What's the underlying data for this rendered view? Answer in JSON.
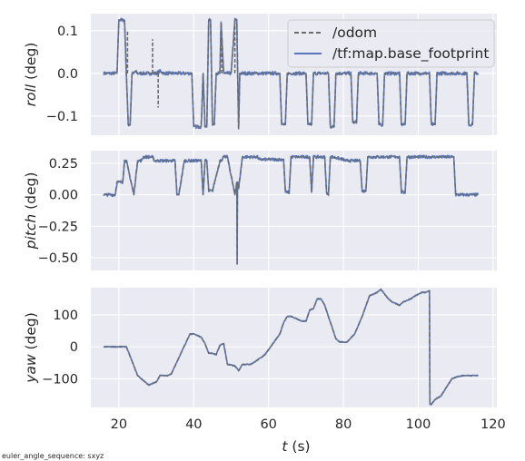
{
  "chart_data": {
    "type": "line",
    "x_label": {
      "var": "t",
      "unit": " (s)"
    },
    "x_ticks": [
      20,
      40,
      60,
      80,
      100,
      120
    ],
    "xlim": [
      12.5,
      121
    ],
    "legend": {
      "placement": "top-right of top panel",
      "entries": [
        {
          "name": "/odom",
          "style": "dashed",
          "color": "#6b6b6b"
        },
        {
          "name": "/tf:map.base_footprint",
          "style": "solid",
          "color": "#5876b8"
        }
      ]
    },
    "footnote": "euler_angle_sequence: sxyz",
    "grid": true,
    "panels": [
      {
        "id": "roll",
        "ylabel": {
          "var": "roll",
          "unit": " (deg)"
        },
        "ylim": [
          -0.145,
          0.14
        ],
        "y_ticks": [
          0.1,
          0.0,
          -0.1
        ],
        "y_tick_labels": [
          "0.1",
          "0.0",
          "−0.1"
        ],
        "series": [
          {
            "name": "/tf:map.base_footprint",
            "t": [
              16,
              19.5,
              20,
              21.5,
              22,
              22.5,
              23,
              23.5,
              24,
              24.4,
              25,
              30,
              31,
              32,
              39.5,
              40,
              42,
              42.5,
              43,
              43.5,
              44,
              44.5,
              45,
              45.5,
              46,
              47,
              47.3,
              48,
              50,
              51,
              51.5,
              52,
              52.3,
              53,
              63,
              63.5,
              64.5,
              65,
              70,
              70.5,
              71.5,
              72,
              76,
              76.5,
              77.5,
              78,
              82,
              82.5,
              83.5,
              84,
              89,
              89.5,
              90.5,
              91,
              95,
              95.5,
              96.5,
              97,
              103,
              103.5,
              104.5,
              105,
              113,
              113.5,
              114.5,
              115,
              116
            ],
            "roll": [
              0,
              0,
              0.125,
              0.125,
              0,
              -0.12,
              -0.12,
              0,
              0,
              0.005,
              0,
              0,
              0.005,
              0,
              0,
              -0.125,
              -0.125,
              0,
              -0.125,
              -0.125,
              0.125,
              0.125,
              -0.12,
              -0.12,
              0,
              0,
              0.12,
              0,
              0,
              0.125,
              0.125,
              -0.13,
              0,
              0,
              0,
              -0.12,
              -0.12,
              0,
              0,
              -0.12,
              -0.12,
              0,
              0,
              -0.125,
              -0.125,
              0,
              0,
              -0.115,
              -0.115,
              0,
              0,
              -0.12,
              -0.12,
              0,
              0,
              -0.12,
              -0.12,
              0,
              0,
              -0.12,
              -0.12,
              0,
              0,
              -0.12,
              -0.12,
              0,
              0
            ]
          },
          {
            "name": "/odom",
            "t": [
              22.3,
              29,
              30.5,
              47.5,
              51
            ],
            "roll_spikes": [
              0.1,
              0.08,
              -0.08,
              0.09,
              0.12
            ]
          }
        ]
      },
      {
        "id": "pitch",
        "ylabel": {
          "var": "pitch",
          "unit": " (deg)"
        },
        "ylim": [
          -0.6,
          0.35
        ],
        "y_ticks": [
          0.25,
          0.0,
          -0.25,
          -0.5
        ],
        "y_tick_labels": [
          "0.25",
          "0.00",
          "−0.25",
          "−0.50"
        ],
        "series": [
          {
            "name": "/tf:map.base_footprint",
            "t": [
              16,
              19,
              19.5,
              21,
              21.5,
              22,
              24,
              25,
              26,
              26.5,
              29,
              29.5,
              31,
              35,
              35.5,
              36,
              37.5,
              38,
              42,
              42.5,
              43,
              43.5,
              44,
              45,
              47,
              47.3,
              48,
              49,
              51,
              51.5,
              51.6,
              51.7,
              52,
              53,
              57,
              57.5,
              64,
              64.5,
              65.5,
              66,
              71,
              71.5,
              72,
              75,
              75.5,
              76,
              76.5,
              77,
              80,
              80.5,
              81,
              84.5,
              85,
              86,
              86.5,
              89.5,
              90,
              95,
              95.5,
              96.5,
              97,
              109,
              109.5,
              110,
              116
            ],
            "pitch": [
              0,
              0,
              0.1,
              0.1,
              0.27,
              0.27,
              0,
              0.27,
              0.27,
              0.3,
              0.3,
              0.27,
              0.27,
              0.27,
              0,
              0,
              0.27,
              0.27,
              0.27,
              0,
              0.27,
              0.27,
              0.03,
              0.03,
              0.27,
              0.27,
              0.3,
              0.3,
              0,
              0.1,
              -0.55,
              0.1,
              0.05,
              0.3,
              0.3,
              0.28,
              0.28,
              0.02,
              0.02,
              0.3,
              0.3,
              0.02,
              0.3,
              0.3,
              0.02,
              0,
              0.3,
              0.3,
              0.28,
              0.27,
              0.27,
              0.27,
              0.03,
              0.03,
              0.3,
              0.3,
              0.3,
              0.3,
              0.02,
              0.02,
              0.3,
              0.3,
              0.3,
              0,
              0
            ]
          }
        ]
      },
      {
        "id": "yaw",
        "ylabel": {
          "var": "yaw",
          "unit": " (deg)"
        },
        "ylim": [
          -190,
          185
        ],
        "y_ticks": [
          100,
          0,
          -100
        ],
        "y_tick_labels": [
          "100",
          "0",
          "−100"
        ],
        "series": [
          {
            "name": "/tf:map.base_footprint",
            "t": [
              16,
              22,
              24,
              25,
              28,
              30,
              31,
              33,
              34,
              39,
              40,
              42,
              43,
              44,
              45,
              46,
              47,
              48,
              49,
              51,
              52,
              53,
              55,
              56,
              59,
              63,
              64,
              65,
              66,
              68,
              69,
              70,
              71,
              72,
              73,
              74,
              75,
              77,
              78,
              79,
              80,
              81,
              83,
              85,
              87,
              89,
              90,
              92,
              93,
              95,
              96,
              98,
              100,
              101,
              102,
              103,
              103.1,
              103.5,
              104.5,
              106,
              109,
              110,
              112,
              116
            ],
            "yaw": [
              0,
              0,
              -60,
              -90,
              -120,
              -110,
              -90,
              -90,
              -85,
              40,
              40,
              30,
              10,
              -20,
              -20,
              -25,
              5,
              10,
              -55,
              -60,
              -75,
              -55,
              -55,
              -50,
              -25,
              40,
              75,
              95,
              95,
              85,
              80,
              80,
              115,
              120,
              150,
              150,
              130,
              60,
              25,
              15,
              15,
              15,
              40,
              95,
              160,
              170,
              180,
              150,
              140,
              130,
              140,
              150,
              165,
              170,
              170,
              175,
              -180,
              -180,
              -165,
              -155,
              -100,
              -95,
              -90,
              -90
            ]
          }
        ]
      }
    ]
  }
}
